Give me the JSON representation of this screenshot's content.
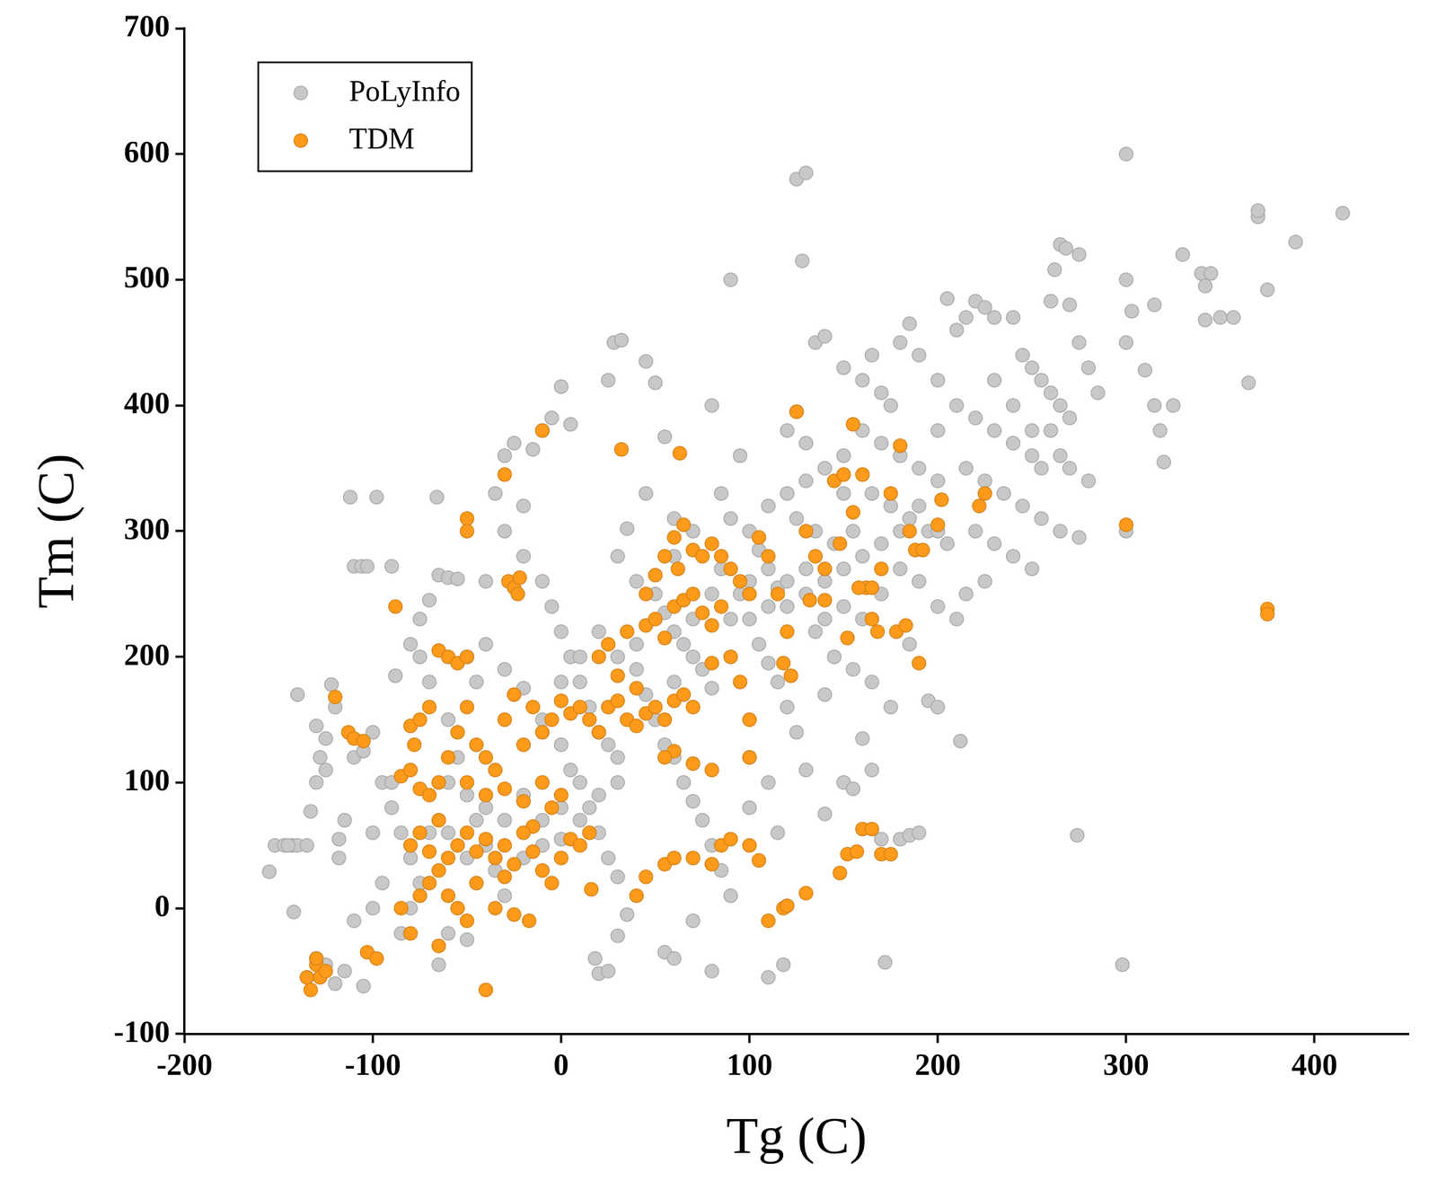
{
  "chart_data": {
    "type": "scatter",
    "x_label": "Tg (C)",
    "y_label": "Tm (C)",
    "xlim": [
      -200,
      450
    ],
    "xticks": [
      -200,
      -100,
      0,
      100,
      200,
      300,
      400
    ],
    "ylim": [
      -100,
      700
    ],
    "yticks": [
      -100,
      0,
      100,
      200,
      300,
      400,
      500,
      600,
      700
    ],
    "grid": false,
    "legend": "upper left",
    "marker": "circle",
    "series": [
      {
        "name": "PoLyInfo",
        "color": "#c8c8c8",
        "x": [
          -155,
          -152,
          -147,
          -143,
          -140,
          -135,
          -142,
          -140,
          -133,
          -130,
          -128,
          -125,
          -122,
          -120,
          -118,
          -115,
          -112,
          -110,
          -106,
          -103,
          -98,
          -90,
          -110,
          -105,
          -100,
          -95,
          -90,
          -85,
          -80,
          -125,
          -120,
          -115,
          -105,
          -110,
          -100,
          -95,
          -85,
          -88,
          -80,
          -75,
          -70,
          -65,
          -60,
          -55,
          -66,
          -75,
          -70,
          -60,
          -55,
          -50,
          -45,
          -40,
          -35,
          -30,
          -65,
          -60,
          -50,
          -35,
          -30,
          -25,
          -20,
          -15,
          -10,
          -5,
          0,
          5,
          -40,
          -30,
          -20,
          -10,
          -5,
          0,
          5,
          10,
          15,
          20,
          25,
          30,
          10,
          15,
          20,
          25,
          30,
          -40,
          -30,
          -20,
          -10,
          0,
          5,
          -20,
          -10,
          0,
          18,
          20,
          25,
          30,
          35,
          28,
          32,
          25,
          45,
          50,
          55,
          45,
          35,
          30,
          40,
          50,
          55,
          60,
          65,
          70,
          75,
          80,
          40,
          45,
          50,
          55,
          60,
          65,
          70,
          75,
          80,
          85,
          55,
          60,
          70,
          80,
          90,
          90,
          80,
          95,
          85,
          90,
          100,
          105,
          110,
          115,
          120,
          100,
          105,
          110,
          115,
          95,
          85,
          120,
          125,
          100,
          110,
          100,
          115,
          110,
          118,
          125,
          130,
          128,
          120,
          125,
          130,
          135,
          140,
          120,
          130,
          140,
          150,
          125,
          135,
          145,
          155,
          130,
          140,
          150,
          160,
          135,
          145,
          155,
          165,
          140,
          160,
          130,
          150,
          165,
          140,
          155,
          170,
          180,
          185,
          190,
          172,
          175,
          150,
          160,
          165,
          170,
          175,
          180,
          185,
          190,
          160,
          170,
          180,
          190,
          200,
          165,
          175,
          185,
          195,
          205,
          170,
          180,
          190,
          200,
          210,
          185,
          195,
          200,
          200,
          205,
          210,
          215,
          220,
          225,
          230,
          210,
          220,
          230,
          240,
          250,
          215,
          225,
          235,
          245,
          255,
          220,
          230,
          240,
          250,
          225,
          215,
          212,
          240,
          245,
          250,
          255,
          260,
          265,
          270,
          260,
          262,
          265,
          268,
          275,
          270,
          275,
          280,
          285,
          260,
          265,
          270,
          280,
          255,
          265,
          275,
          274,
          298,
          300,
          300,
          300,
          300,
          303,
          310,
          315,
          318,
          320,
          315,
          330,
          325,
          340,
          342,
          345,
          342,
          350,
          357,
          365,
          370,
          370,
          375,
          390,
          415,
          230,
          240,
          250,
          200,
          150,
          110,
          70,
          60,
          60,
          -50,
          -45,
          -60,
          -70,
          -75,
          -80,
          -130,
          -125,
          -118,
          -100,
          -90,
          -130,
          -135,
          -145,
          0,
          10,
          20,
          30,
          40,
          60,
          70,
          80,
          90,
          100,
          110,
          120,
          130,
          140,
          150,
          160,
          170,
          180,
          190,
          200,
          -60,
          -50,
          -40,
          -30,
          -20,
          -10,
          0,
          10,
          20,
          30
        ],
        "values": [
          29,
          50,
          50,
          50,
          50,
          50,
          -3,
          170,
          77,
          145,
          120,
          135,
          178,
          160,
          55,
          70,
          327,
          272,
          272,
          272,
          327,
          272,
          120,
          125,
          140,
          100,
          80,
          60,
          40,
          -45,
          -60,
          -50,
          -62,
          -10,
          0,
          20,
          -20,
          185,
          210,
          230,
          245,
          265,
          263,
          262,
          327,
          200,
          180,
          150,
          120,
          90,
          70,
          50,
          30,
          10,
          -45,
          -20,
          -25,
          330,
          360,
          370,
          320,
          365,
          380,
          390,
          415,
          385,
          260,
          300,
          280,
          260,
          240,
          220,
          200,
          180,
          160,
          140,
          130,
          120,
          100,
          80,
          60,
          40,
          25,
          210,
          190,
          175,
          150,
          130,
          110,
          90,
          70,
          55,
          -40,
          -52,
          -50,
          -22,
          -5,
          450,
          452,
          420,
          435,
          418,
          375,
          330,
          302,
          280,
          260,
          250,
          235,
          220,
          210,
          200,
          190,
          175,
          190,
          170,
          150,
          130,
          120,
          100,
          85,
          70,
          50,
          30,
          -35,
          -40,
          -10,
          -50,
          10,
          500,
          400,
          360,
          330,
          310,
          300,
          285,
          270,
          255,
          240,
          230,
          210,
          195,
          180,
          250,
          270,
          160,
          140,
          120,
          100,
          80,
          60,
          -55,
          -45,
          580,
          585,
          515,
          380,
          395,
          370,
          450,
          455,
          330,
          340,
          350,
          360,
          310,
          300,
          290,
          300,
          270,
          260,
          240,
          230,
          220,
          200,
          190,
          180,
          170,
          135,
          110,
          100,
          110,
          75,
          95,
          55,
          55,
          58,
          60,
          -43,
          160,
          430,
          420,
          440,
          410,
          400,
          450,
          465,
          440,
          380,
          370,
          360,
          350,
          340,
          330,
          320,
          310,
          300,
          290,
          290,
          270,
          260,
          240,
          230,
          210,
          165,
          160,
          420,
          485,
          460,
          470,
          483,
          478,
          470,
          400,
          390,
          380,
          370,
          360,
          350,
          340,
          330,
          320,
          310,
          300,
          290,
          280,
          270,
          260,
          250,
          133,
          470,
          440,
          430,
          420,
          410,
          400,
          390,
          483,
          508,
          528,
          525,
          520,
          480,
          450,
          430,
          410,
          380,
          360,
          350,
          340,
          350,
          300,
          295,
          58,
          -45,
          600,
          500,
          450,
          300,
          475,
          428,
          400,
          380,
          355,
          480,
          520,
          400,
          505,
          495,
          505,
          468,
          470,
          470,
          418,
          550,
          555,
          492,
          530,
          553,
          420,
          400,
          380,
          380,
          330,
          320,
          300,
          280,
          310,
          200,
          180,
          100,
          60,
          20,
          0,
          100,
          110,
          40,
          60,
          100,
          -40,
          -55,
          50,
          180,
          200,
          220,
          200,
          210,
          180,
          230,
          250,
          230,
          260,
          240,
          260,
          250,
          230,
          270,
          280,
          250,
          300,
          320,
          300,
          60,
          40,
          80,
          70,
          40,
          50,
          80,
          70,
          90,
          100
        ]
      },
      {
        "name": "TDM",
        "color": "#ff9a1a",
        "x": [
          -135,
          -133,
          -130,
          -128,
          -125,
          -130,
          -120,
          -113,
          -110,
          -105,
          -103,
          -98,
          -88,
          -80,
          -78,
          -75,
          -70,
          -65,
          -60,
          -55,
          -50,
          -85,
          -80,
          -75,
          -70,
          -65,
          -60,
          -55,
          -50,
          -45,
          -40,
          -35,
          -30,
          -25,
          -20,
          -15,
          -10,
          -5,
          0,
          5,
          10,
          15,
          20,
          25,
          30,
          35,
          40,
          45,
          50,
          55,
          60,
          65,
          70,
          40,
          30,
          20,
          25,
          35,
          45,
          50,
          55,
          60,
          65,
          70,
          75,
          80,
          85,
          80,
          90,
          95,
          100,
          100,
          80,
          70,
          60,
          55,
          -10,
          -5,
          0,
          -15,
          -20,
          -30,
          -40,
          -50,
          -85,
          -80,
          -75,
          -70,
          -65,
          -60,
          -55,
          -50,
          -45,
          -40,
          -35,
          -30,
          -25,
          -20,
          -15,
          -10,
          -5,
          0,
          5,
          10,
          15,
          -80,
          -75,
          -70,
          -65,
          -60,
          -55,
          -50,
          -45,
          -65,
          -40,
          -35,
          -30,
          -25,
          -17,
          16,
          40,
          45,
          55,
          60,
          70,
          80,
          85,
          90,
          100,
          105,
          110,
          118,
          120,
          130,
          148,
          152,
          157,
          160,
          165,
          170,
          175,
          -30,
          -28,
          -25,
          -23,
          -22,
          -50,
          -50,
          -10,
          32,
          63,
          55,
          60,
          65,
          70,
          75,
          80,
          85,
          90,
          95,
          100,
          105,
          110,
          115,
          120,
          122,
          118,
          125,
          130,
          132,
          135,
          140,
          145,
          150,
          155,
          155,
          160,
          162,
          165,
          168,
          170,
          175,
          178,
          180,
          183,
          185,
          188,
          190,
          192,
          200,
          202,
          222,
          225,
          300,
          375,
          375,
          140,
          148,
          152,
          158,
          165,
          50,
          45,
          62
        ],
        "values": [
          -55,
          -65,
          -45,
          -55,
          -50,
          -40,
          168,
          140,
          135,
          133,
          -35,
          -40,
          240,
          145,
          130,
          150,
          160,
          205,
          200,
          195,
          200,
          105,
          110,
          95,
          90,
          100,
          120,
          140,
          160,
          130,
          120,
          110,
          150,
          170,
          130,
          160,
          140,
          150,
          165,
          155,
          160,
          150,
          140,
          160,
          165,
          150,
          145,
          155,
          160,
          150,
          165,
          170,
          160,
          175,
          185,
          200,
          210,
          220,
          225,
          230,
          215,
          240,
          245,
          250,
          235,
          225,
          240,
          195,
          200,
          180,
          150,
          120,
          110,
          115,
          125,
          120,
          100,
          80,
          90,
          65,
          85,
          95,
          90,
          100,
          0,
          -20,
          10,
          20,
          30,
          40,
          50,
          60,
          45,
          55,
          40,
          50,
          35,
          60,
          45,
          30,
          20,
          40,
          55,
          50,
          60,
          50,
          60,
          45,
          70,
          10,
          0,
          -10,
          20,
          -30,
          -65,
          0,
          25,
          -5,
          -10,
          15,
          10,
          25,
          35,
          40,
          40,
          35,
          50,
          55,
          50,
          38,
          -10,
          0,
          2,
          12,
          28,
          43,
          45,
          63,
          63,
          43,
          43,
          345,
          260,
          255,
          250,
          263,
          310,
          300,
          380,
          365,
          362,
          280,
          295,
          305,
          285,
          280,
          290,
          280,
          270,
          260,
          250,
          295,
          280,
          250,
          220,
          185,
          195,
          395,
          300,
          245,
          280,
          270,
          340,
          345,
          385,
          315,
          345,
          255,
          230,
          220,
          270,
          330,
          220,
          368,
          225,
          300,
          285,
          195,
          285,
          305,
          325,
          320,
          330,
          305,
          238,
          234,
          245,
          290,
          215,
          255,
          255,
          265,
          250,
          270
        ]
      }
    ]
  }
}
